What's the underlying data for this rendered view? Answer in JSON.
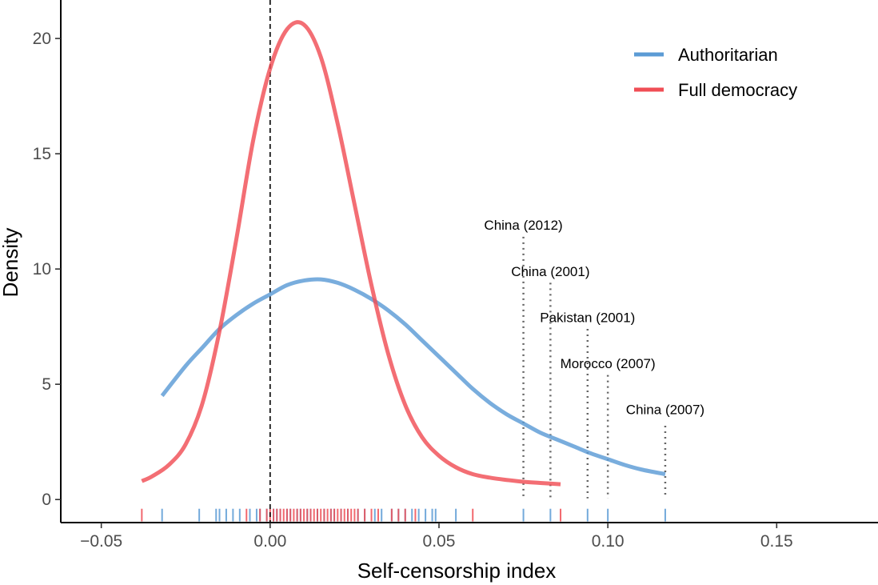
{
  "chart_data": {
    "type": "line",
    "title": "",
    "xlabel": "Self-censorship index",
    "ylabel": "Density",
    "xlim": [
      -0.062,
      0.18
    ],
    "ylim": [
      -1.0,
      21.6
    ],
    "xticks": [
      {
        "value": -0.05,
        "label": "−0.05"
      },
      {
        "value": 0.0,
        "label": "0.00"
      },
      {
        "value": 0.05,
        "label": "0.05"
      },
      {
        "value": 0.1,
        "label": "0.10"
      },
      {
        "value": 0.15,
        "label": "0.15"
      }
    ],
    "yticks": [
      {
        "value": 0,
        "label": "0"
      },
      {
        "value": 5,
        "label": "5"
      },
      {
        "value": 10,
        "label": "10"
      },
      {
        "value": 15,
        "label": "15"
      },
      {
        "value": 20,
        "label": "20"
      }
    ],
    "grid": false,
    "legend_position": "top-right",
    "reference_line": {
      "x": 0.0,
      "style": "dashed"
    },
    "series": [
      {
        "name": "Authoritarian",
        "color": "#5b9bd5",
        "x": [
          -0.032,
          -0.025,
          -0.02,
          -0.015,
          -0.01,
          -0.005,
          0.0,
          0.005,
          0.01,
          0.015,
          0.02,
          0.025,
          0.03,
          0.035,
          0.04,
          0.045,
          0.05,
          0.055,
          0.06,
          0.065,
          0.07,
          0.075,
          0.08,
          0.085,
          0.09,
          0.095,
          0.1,
          0.105,
          0.11,
          0.117
        ],
        "y": [
          4.5,
          5.8,
          6.6,
          7.4,
          8.0,
          8.5,
          8.9,
          9.3,
          9.5,
          9.55,
          9.4,
          9.1,
          8.7,
          8.2,
          7.6,
          6.9,
          6.2,
          5.5,
          4.8,
          4.2,
          3.7,
          3.3,
          2.9,
          2.6,
          2.3,
          2.0,
          1.75,
          1.5,
          1.3,
          1.1
        ]
      },
      {
        "name": "Full democracy",
        "color": "#f04e55",
        "x": [
          -0.038,
          -0.035,
          -0.03,
          -0.025,
          -0.02,
          -0.015,
          -0.01,
          -0.005,
          0.0,
          0.005,
          0.01,
          0.015,
          0.02,
          0.025,
          0.03,
          0.035,
          0.04,
          0.045,
          0.05,
          0.055,
          0.06,
          0.065,
          0.07,
          0.075,
          0.08,
          0.086
        ],
        "y": [
          0.8,
          1.0,
          1.5,
          2.4,
          4.2,
          7.3,
          11.3,
          15.6,
          18.7,
          20.4,
          20.6,
          19.2,
          16.3,
          12.8,
          9.3,
          6.3,
          4.1,
          2.7,
          1.9,
          1.4,
          1.1,
          0.95,
          0.85,
          0.77,
          0.72,
          0.66
        ]
      }
    ],
    "rug": {
      "Authoritarian": [
        -0.032,
        -0.021,
        -0.016,
        -0.015,
        -0.013,
        -0.011,
        -0.009,
        -0.006,
        -0.004,
        -0.003,
        -0.001,
        0.001,
        0.002,
        0.003,
        0.005,
        0.006,
        0.008,
        0.009,
        0.011,
        0.012,
        0.014,
        0.016,
        0.018,
        0.019,
        0.021,
        0.023,
        0.026,
        0.028,
        0.031,
        0.033,
        0.036,
        0.038,
        0.04,
        0.042,
        0.044,
        0.046,
        0.048,
        0.049,
        0.055,
        0.075,
        0.083,
        0.094,
        0.1,
        0.117
      ],
      "Full democracy": [
        -0.038,
        -0.007,
        -0.003,
        -0.001,
        0.0,
        0.001,
        0.002,
        0.003,
        0.004,
        0.005,
        0.006,
        0.007,
        0.008,
        0.009,
        0.01,
        0.011,
        0.012,
        0.013,
        0.014,
        0.015,
        0.016,
        0.017,
        0.018,
        0.019,
        0.02,
        0.021,
        0.022,
        0.023,
        0.024,
        0.025,
        0.026,
        0.028,
        0.03,
        0.032,
        0.036,
        0.038,
        0.04,
        0.043,
        0.06,
        0.086
      ]
    },
    "annotations": [
      {
        "label": "China (2012)",
        "x": 0.075,
        "y_top": 11.4,
        "label_x": 0.075,
        "label_y": 11.7
      },
      {
        "label": "China (2001)",
        "x": 0.083,
        "y_top": 9.4,
        "label_x": 0.083,
        "label_y": 9.7
      },
      {
        "label": "Pakistan (2001)",
        "x": 0.094,
        "y_top": 7.4,
        "label_x": 0.094,
        "label_y": 7.7
      },
      {
        "label": "Morocco (2007)",
        "x": 0.1,
        "y_top": 5.4,
        "label_x": 0.1,
        "label_y": 5.7
      },
      {
        "label": "China (2007)",
        "x": 0.117,
        "y_top": 3.2,
        "label_x": 0.117,
        "label_y": 3.7
      }
    ]
  }
}
